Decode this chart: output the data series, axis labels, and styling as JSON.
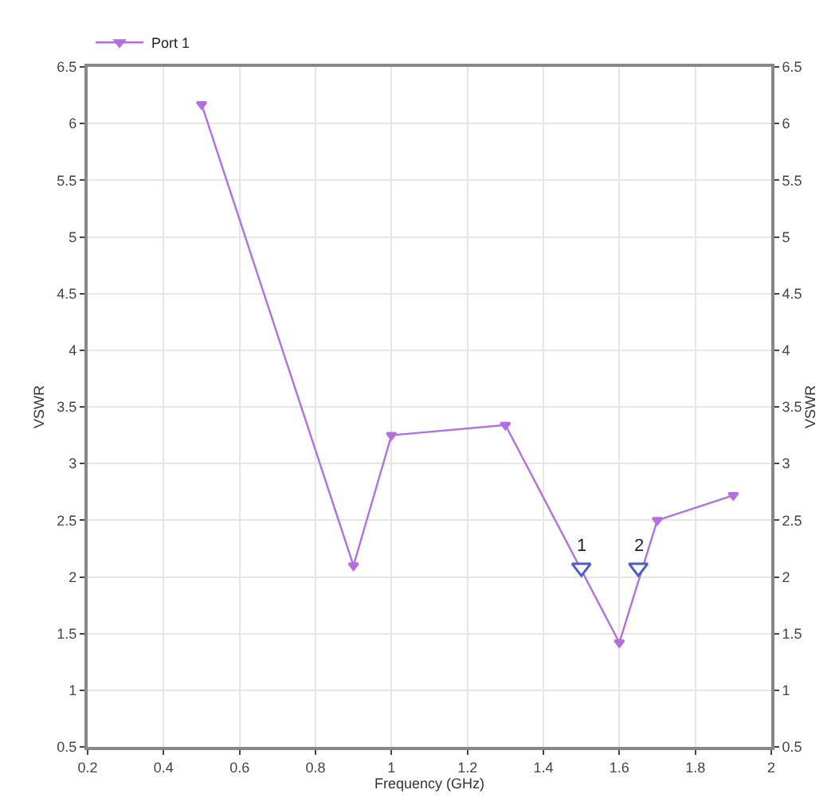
{
  "chart_data": {
    "type": "line",
    "xlabel": "Frequency (GHz)",
    "ylabel": "VSWR",
    "y2label": "VSWR",
    "series": [
      {
        "name": "Port 1",
        "color": "#b46ee0",
        "x": [
          0.5,
          0.9,
          1.0,
          1.3,
          1.6,
          1.7,
          1.9
        ],
        "values": [
          6.17,
          2.1,
          3.25,
          3.34,
          1.42,
          2.5,
          2.72
        ],
        "marker": "triangle"
      },
      {
        "type": "scatter",
        "color": "#4a5ad0",
        "x": [
          1.5,
          1.65
        ],
        "values": [
          2.08,
          2.08
        ],
        "marker": "triangle"
      }
    ],
    "annotations": [
      {
        "text": "1",
        "x": 1.5,
        "y": 2.08
      },
      {
        "text": "2",
        "x": 1.65,
        "y": 2.08
      }
    ],
    "xlim": [
      0.2,
      2
    ],
    "xticks": [
      0.2,
      0.4,
      0.6,
      0.8,
      1,
      1.2,
      1.4,
      1.6,
      1.8,
      2
    ],
    "ylim": [
      0.5,
      6.5
    ],
    "yticks": [
      0.5,
      1,
      1.5,
      2,
      2.5,
      3,
      3.5,
      4,
      4.5,
      5,
      5.5,
      6,
      6.5
    ],
    "y2lim": [
      0.5,
      6.5
    ],
    "y2ticks": [
      0.5,
      1,
      1.5,
      2,
      2.5,
      3,
      3.5,
      4,
      4.5,
      5,
      5.5,
      6,
      6.5
    ],
    "grid": true,
    "legend": "top left"
  }
}
